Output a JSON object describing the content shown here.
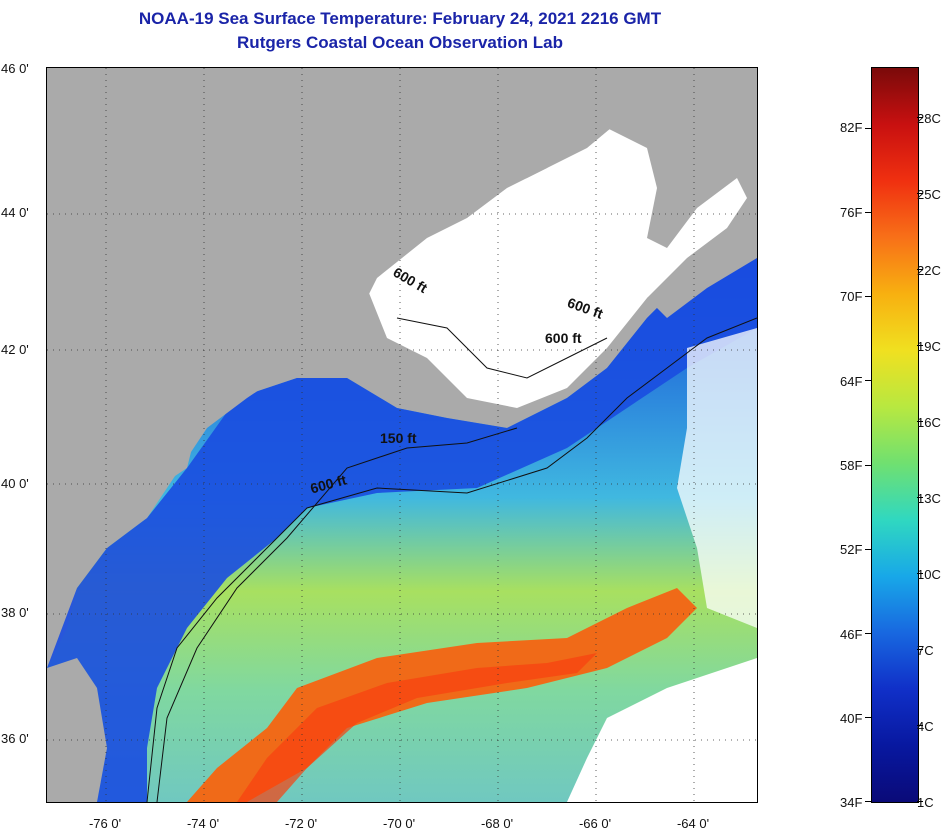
{
  "title": "NOAA-19 Sea Surface Temperature:  February 24, 2021 2216 GMT",
  "subtitle": "Rutgers Coastal Ocean Observation Lab",
  "latitude_labels": [
    "46 0'",
    "44 0'",
    "42 0'",
    "40 0'",
    "38 0'",
    "36 0'"
  ],
  "longitude_labels": [
    "-76 0'",
    "-74 0'",
    "-72 0'",
    "-70 0'",
    "-68 0'",
    "-66 0'",
    "-64 0'"
  ],
  "contour_labels": [
    "600 ft",
    "600 ft",
    "600 ft",
    "150 ft",
    "600 ft"
  ],
  "colorbar": {
    "fahrenheit_labels": [
      "82F",
      "76F",
      "70F",
      "64F",
      "58F",
      "52F",
      "46F",
      "40F",
      "34F"
    ],
    "celsius_labels": [
      "28C",
      "25C",
      "22C",
      "19C",
      "16C",
      "13C",
      "10C",
      "7C",
      "4C",
      "1C"
    ],
    "colors": [
      "#7a0a0a",
      "#c81010",
      "#f03010",
      "#f87018",
      "#f8b010",
      "#f0e020",
      "#b8e840",
      "#70e070",
      "#30d8c0",
      "#18a8e8",
      "#1868e0",
      "#1030c8",
      "#0818a0",
      "#0a0a78"
    ]
  },
  "colors": {
    "land": "#aaaaaa",
    "cloud": "#ffffff",
    "title_text": "#1a24a8"
  }
}
